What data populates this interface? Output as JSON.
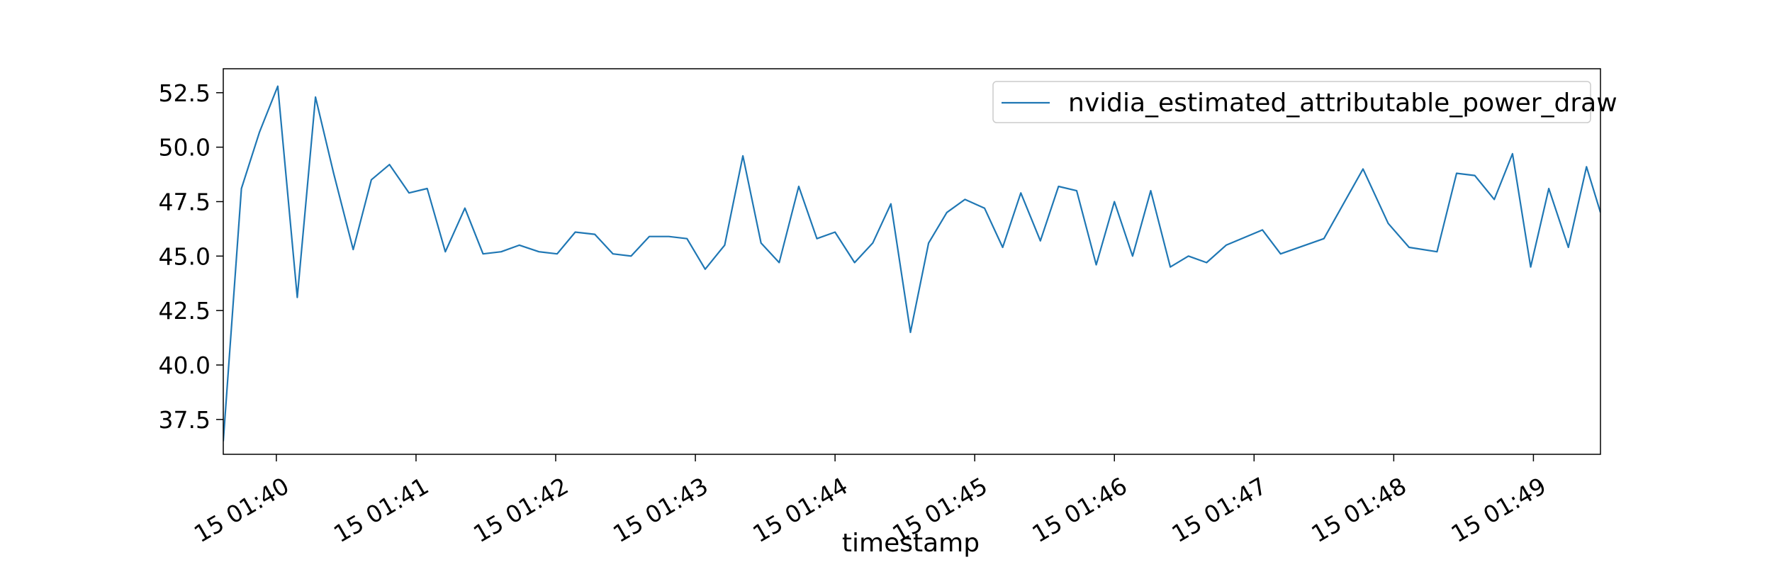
{
  "chart_data": {
    "type": "line",
    "title": "",
    "xlabel": "timestamp",
    "ylabel": "",
    "x_unit": "minute within hour 01 on day 15",
    "x_tick_labels": [
      "15 01:40",
      "15 01:41",
      "15 01:42",
      "15 01:43",
      "15 01:44",
      "15 01:45",
      "15 01:46",
      "15 01:47",
      "15 01:48",
      "15 01:49"
    ],
    "x_tick_values": [
      40,
      41,
      42,
      43,
      44,
      45,
      46,
      47,
      48,
      49
    ],
    "y_tick_labels": [
      "37.5",
      "40.0",
      "42.5",
      "45.0",
      "47.5",
      "50.0",
      "52.5"
    ],
    "y_tick_values": [
      37.5,
      40.0,
      42.5,
      45.0,
      47.5,
      50.0,
      52.5
    ],
    "xlim": [
      39.62,
      49.48
    ],
    "ylim": [
      35.9,
      53.6
    ],
    "grid": false,
    "legend_position": "top-right",
    "color": "#1f77b4",
    "series": [
      {
        "name": "nvidia_estimated_attributable_power_draw",
        "x": [
          39.62,
          39.75,
          39.88,
          40.01,
          40.15,
          40.28,
          40.41,
          40.55,
          40.68,
          40.81,
          40.95,
          41.08,
          41.21,
          41.35,
          41.48,
          41.61,
          41.74,
          41.88,
          42.01,
          42.14,
          42.28,
          42.41,
          42.54,
          42.67,
          42.81,
          42.94,
          43.07,
          43.21,
          43.34,
          43.47,
          43.6,
          43.74,
          43.87,
          44.0,
          44.14,
          44.27,
          44.4,
          44.54,
          44.67,
          44.8,
          44.93,
          45.07,
          45.2,
          45.33,
          45.47,
          45.6,
          45.73,
          45.87,
          46.0,
          46.13,
          46.26,
          46.4,
          46.53,
          46.66,
          46.8,
          47.06,
          47.19,
          47.5,
          47.78,
          47.96,
          48.11,
          48.31,
          48.45,
          48.58,
          48.72,
          48.85,
          48.98,
          49.11,
          49.25,
          49.38,
          49.48
        ],
        "y": [
          36.5,
          48.1,
          50.7,
          52.8,
          43.1,
          52.3,
          48.8,
          45.3,
          48.5,
          49.2,
          47.9,
          48.1,
          45.2,
          47.2,
          45.1,
          45.2,
          45.5,
          45.2,
          45.1,
          46.1,
          46.0,
          45.1,
          45.0,
          45.9,
          45.9,
          45.8,
          44.4,
          45.5,
          49.6,
          45.6,
          44.7,
          48.2,
          45.8,
          46.1,
          44.7,
          45.6,
          47.4,
          41.5,
          45.6,
          47.0,
          47.6,
          47.2,
          45.4,
          47.9,
          45.7,
          48.2,
          48.0,
          44.6,
          47.5,
          45.0,
          48.0,
          44.5,
          45.0,
          44.7,
          45.5,
          46.2,
          45.1,
          45.8,
          49.0,
          46.5,
          45.4,
          45.2,
          48.8,
          48.7,
          47.6,
          49.7,
          44.5,
          48.1,
          45.4,
          49.1,
          47.0
        ]
      }
    ]
  }
}
